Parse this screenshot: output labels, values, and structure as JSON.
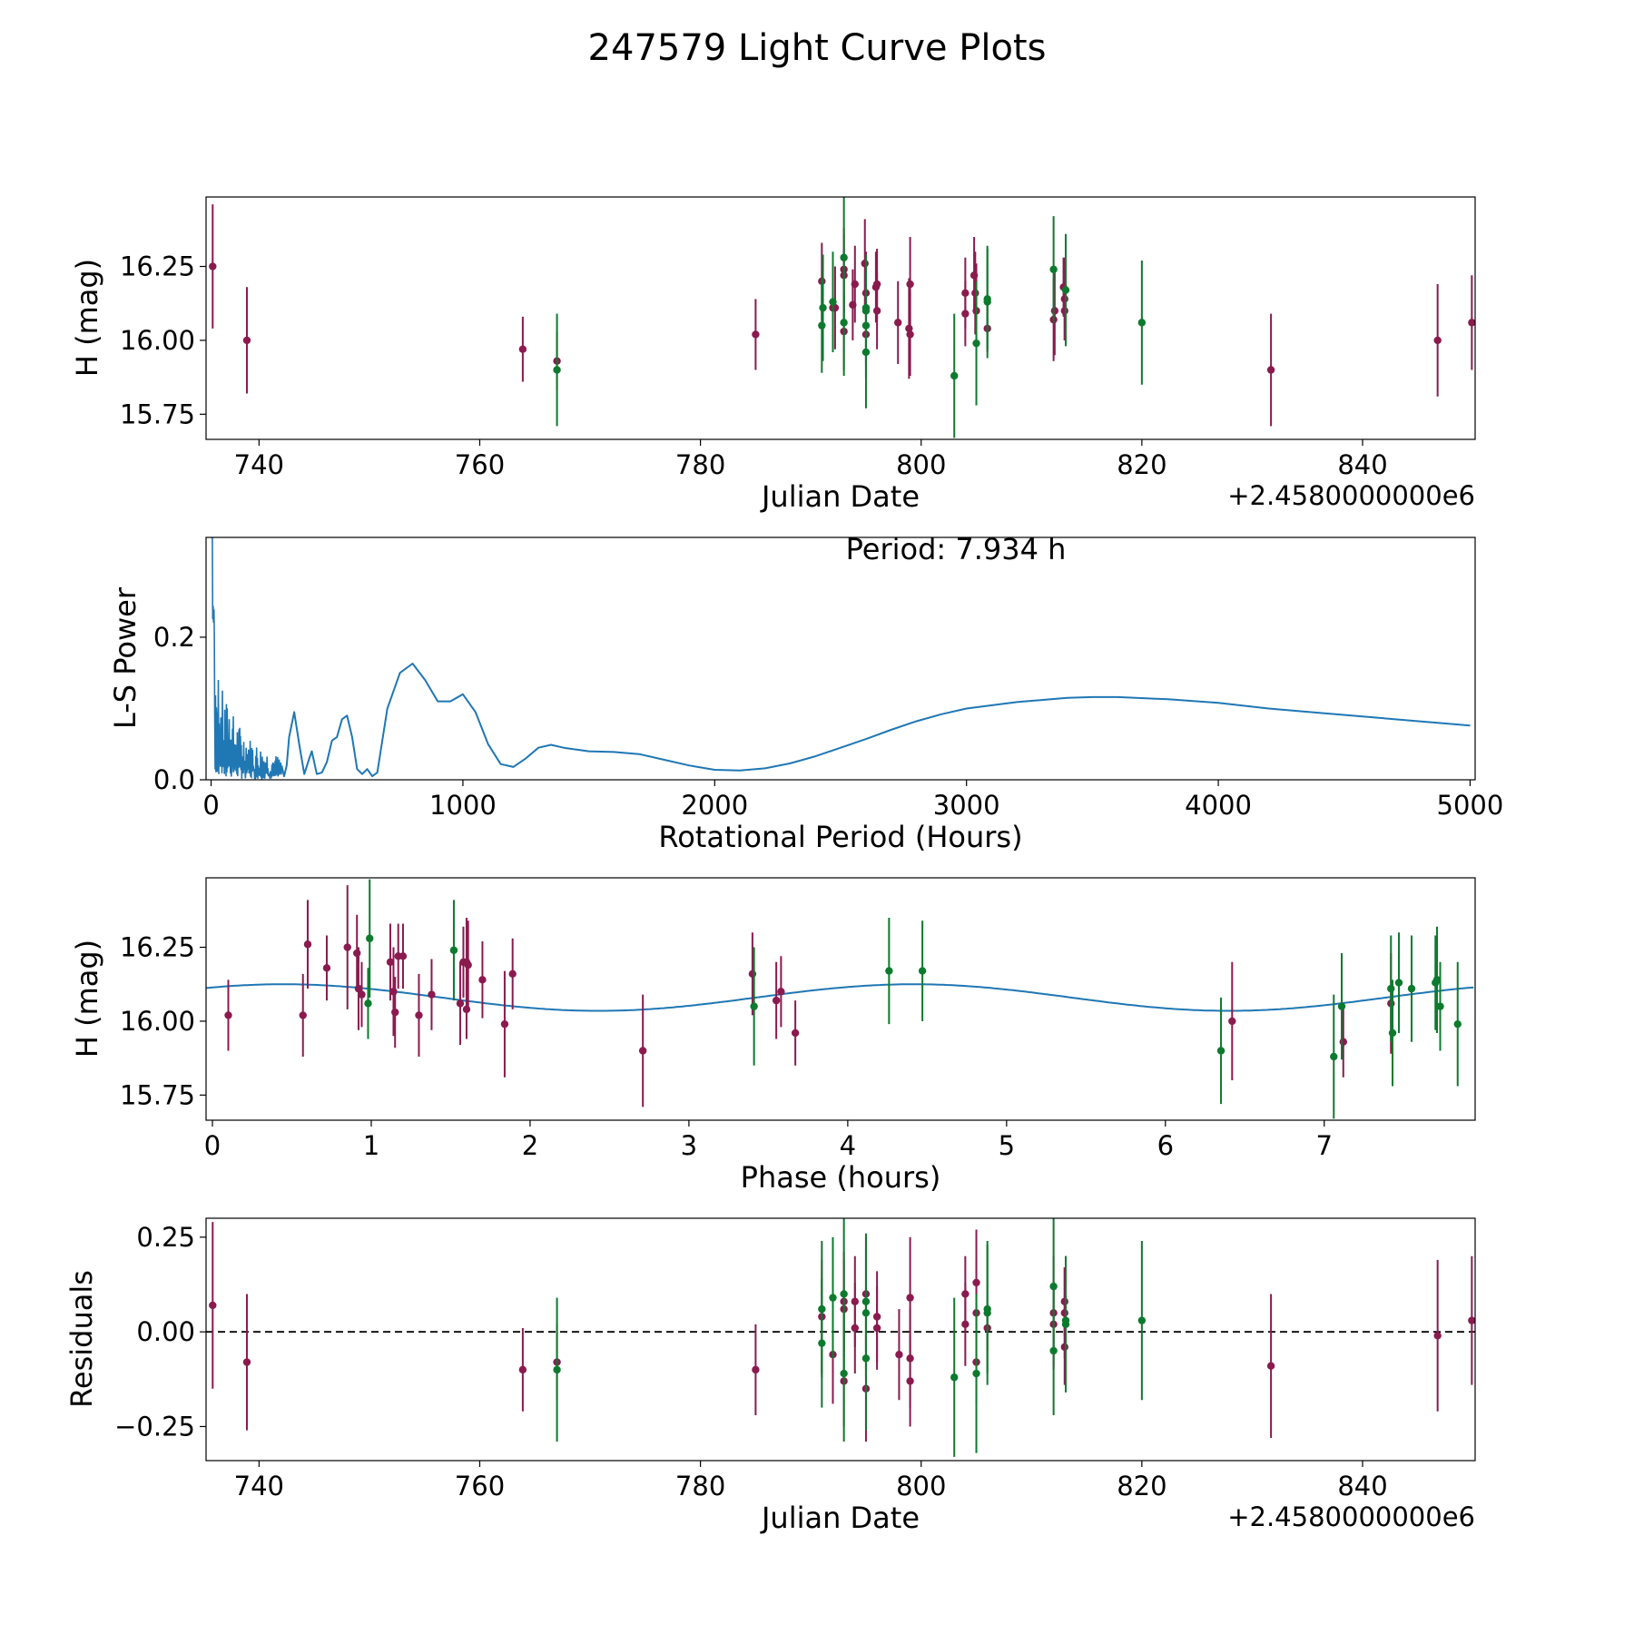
{
  "figure": {
    "title": "247579 Light Curve Plots",
    "colors": {
      "series_a": "#8b1a4f",
      "series_b": "#0d7a2e",
      "model": "#1f77b4",
      "zero_line": "#000000"
    }
  },
  "chart_data": [
    {
      "id": "lightcurve",
      "type": "scatter",
      "title": "",
      "xlabel": "Julian Date",
      "ylabel": "H (mag)",
      "offset_label": "+2.4580000000e6",
      "xlim": [
        735.2,
        850.2
      ],
      "ylim": [
        15.665,
        16.485
      ],
      "xticks": [
        740,
        760,
        780,
        800,
        820,
        840
      ],
      "xtick_labels": [
        "740",
        "760",
        "780",
        "800",
        "820",
        "840"
      ],
      "yticks": [
        15.75,
        16.0,
        16.25
      ],
      "ytick_labels": [
        "15.75",
        "16.00",
        "16.25"
      ],
      "series": [
        {
          "name": "maroon",
          "color": "#8b1a4f",
          "x": [
            735.8,
            738.9,
            763.9,
            767.0,
            785.0,
            791.0,
            792.0,
            792.2,
            793.0,
            793.0,
            793.0,
            793.8,
            794.0,
            794.9,
            795.0,
            795.0,
            795.9,
            796.0,
            796.0,
            797.9,
            798.9,
            799.0,
            799.0,
            804.0,
            804.0,
            804.8,
            804.9,
            805.0,
            806.0,
            812.0,
            812.1,
            812.9,
            813.0,
            813.0,
            831.7,
            846.8,
            849.9
          ],
          "y": [
            16.25,
            16.0,
            15.97,
            15.93,
            16.02,
            16.2,
            16.11,
            16.11,
            16.24,
            16.22,
            16.03,
            16.12,
            16.19,
            16.26,
            16.16,
            16.02,
            16.18,
            16.19,
            16.1,
            16.06,
            16.04,
            16.02,
            16.19,
            16.16,
            16.09,
            16.22,
            16.16,
            16.1,
            16.04,
            16.07,
            16.1,
            16.18,
            16.14,
            16.1,
            15.9,
            16.0,
            16.06
          ],
          "err": [
            0.21,
            0.18,
            0.11,
            0.1,
            0.12,
            0.13,
            0.14,
            0.14,
            0.14,
            0.14,
            0.13,
            0.12,
            0.13,
            0.15,
            0.14,
            0.14,
            0.12,
            0.12,
            0.13,
            0.14,
            0.17,
            0.14,
            0.16,
            0.12,
            0.11,
            0.13,
            0.14,
            0.16,
            0.08,
            0.14,
            0.15,
            0.1,
            0.14,
            0.1,
            0.19,
            0.19,
            0.16
          ]
        },
        {
          "name": "green",
          "color": "#0d7a2e",
          "x": [
            767.0,
            791.0,
            791.1,
            792.0,
            793.0,
            793.0,
            795.0,
            795.0,
            795.0,
            795.0,
            803.0,
            805.0,
            806.0,
            806.0,
            812.0,
            813.1,
            820.0
          ],
          "y": [
            15.9,
            16.05,
            16.11,
            16.13,
            16.28,
            16.06,
            16.11,
            16.05,
            15.96,
            16.1,
            15.88,
            15.99,
            16.13,
            16.14,
            16.24,
            16.17,
            16.06
          ],
          "err": [
            0.19,
            0.16,
            0.18,
            0.17,
            0.22,
            0.18,
            0.18,
            0.18,
            0.19,
            0.18,
            0.21,
            0.21,
            0.19,
            0.17,
            0.18,
            0.19,
            0.21
          ]
        }
      ]
    },
    {
      "id": "periodogram",
      "type": "line",
      "title": "",
      "xlabel": "Rotational Period (Hours)",
      "ylabel": "L-S Power",
      "annotation": "Period: 7.934 h",
      "xlim": [
        -20,
        5020
      ],
      "ylim": [
        0.0,
        0.34
      ],
      "xticks": [
        0,
        1000,
        2000,
        3000,
        4000,
        5000
      ],
      "xtick_labels": [
        "0",
        "1000",
        "2000",
        "3000",
        "4000",
        "5000"
      ],
      "yticks": [
        0.0,
        0.2
      ],
      "ytick_labels": [
        "0.0",
        "0.2"
      ],
      "series": [
        {
          "name": "L-S Power",
          "color": "#1f77b4",
          "x": [
            280,
            290,
            300,
            310,
            330,
            350,
            370,
            390,
            400,
            420,
            440,
            460,
            480,
            500,
            520,
            540,
            560,
            580,
            600,
            620,
            640,
            660,
            700,
            750,
            800,
            850,
            900,
            950,
            1000,
            1050,
            1100,
            1150,
            1200,
            1250,
            1300,
            1350,
            1400,
            1500,
            1600,
            1700,
            1800,
            1900,
            2000,
            2100,
            2200,
            2300,
            2400,
            2500,
            2600,
            2700,
            2800,
            2900,
            3000,
            3200,
            3400,
            3500,
            3600,
            3800,
            4000,
            4200,
            4400,
            4600,
            4800,
            5000
          ],
          "y": [
            0.02,
            0.005,
            0.02,
            0.06,
            0.095,
            0.05,
            0.008,
            0.03,
            0.04,
            0.008,
            0.01,
            0.025,
            0.055,
            0.06,
            0.085,
            0.09,
            0.06,
            0.015,
            0.008,
            0.015,
            0.005,
            0.01,
            0.1,
            0.15,
            0.163,
            0.14,
            0.11,
            0.11,
            0.12,
            0.095,
            0.05,
            0.022,
            0.018,
            0.03,
            0.045,
            0.049,
            0.045,
            0.04,
            0.039,
            0.036,
            0.028,
            0.02,
            0.014,
            0.013,
            0.016,
            0.023,
            0.033,
            0.045,
            0.057,
            0.07,
            0.082,
            0.092,
            0.1,
            0.109,
            0.115,
            0.116,
            0.116,
            0.113,
            0.108,
            0.1,
            0.094,
            0.088,
            0.082,
            0.076
          ]
        }
      ]
    },
    {
      "id": "phased",
      "type": "scatter",
      "title": "",
      "xlabel": "Phase (hours)",
      "ylabel": "H (mag)",
      "xlim": [
        -0.04,
        7.95
      ],
      "ylim": [
        15.665,
        16.485
      ],
      "xticks": [
        0,
        1,
        2,
        3,
        4,
        5,
        6,
        7
      ],
      "xtick_labels": [
        "0",
        "1",
        "2",
        "3",
        "4",
        "5",
        "6",
        "7"
      ],
      "yticks": [
        15.75,
        16.0,
        16.25
      ],
      "ytick_labels": [
        "15.75",
        "16.00",
        "16.25"
      ],
      "model": {
        "name": "fit",
        "mean": 16.08,
        "amp1": 0.045,
        "amp2": 0.02,
        "phase2": 0.3
      },
      "series": [
        {
          "name": "maroon",
          "color": "#8b1a4f",
          "x": [
            0.1,
            0.57,
            0.6,
            0.72,
            0.85,
            0.91,
            0.92,
            0.94,
            1.12,
            1.14,
            1.15,
            1.17,
            1.2,
            1.3,
            1.38,
            1.56,
            1.58,
            1.6,
            1.6,
            1.61,
            1.7,
            1.84,
            1.89,
            2.71,
            3.4,
            3.55,
            3.58,
            3.67,
            6.42,
            7.12,
            7.42
          ],
          "y": [
            16.02,
            16.02,
            16.26,
            16.18,
            16.25,
            16.23,
            16.11,
            16.09,
            16.2,
            16.1,
            16.03,
            16.22,
            16.22,
            16.02,
            16.09,
            16.06,
            16.2,
            16.2,
            16.04,
            16.19,
            16.14,
            15.99,
            16.16,
            15.9,
            16.16,
            16.07,
            16.1,
            15.96,
            16.0,
            15.93,
            16.06
          ],
          "err": [
            0.12,
            0.14,
            0.15,
            0.11,
            0.21,
            0.13,
            0.14,
            0.11,
            0.13,
            0.15,
            0.12,
            0.11,
            0.11,
            0.14,
            0.12,
            0.14,
            0.12,
            0.15,
            0.1,
            0.15,
            0.13,
            0.18,
            0.12,
            0.19,
            0.14,
            0.13,
            0.12,
            0.11,
            0.2,
            0.12,
            0.17
          ]
        },
        {
          "name": "green",
          "color": "#0d7a2e",
          "x": [
            0.98,
            0.99,
            1.52,
            3.41,
            4.26,
            4.47,
            6.35,
            7.06,
            7.11,
            7.42,
            7.43,
            7.47,
            7.55,
            7.7,
            7.71,
            7.73,
            7.84
          ],
          "y": [
            16.06,
            16.28,
            16.24,
            16.05,
            16.17,
            16.17,
            15.9,
            15.88,
            16.05,
            16.11,
            15.96,
            16.13,
            16.11,
            16.13,
            16.14,
            16.05,
            15.99
          ],
          "err": [
            0.12,
            0.2,
            0.17,
            0.2,
            0.18,
            0.17,
            0.18,
            0.21,
            0.18,
            0.18,
            0.18,
            0.17,
            0.18,
            0.16,
            0.18,
            0.15,
            0.21
          ]
        }
      ]
    },
    {
      "id": "residuals",
      "type": "scatter",
      "title": "",
      "xlabel": "Julian Date",
      "ylabel": "Residuals",
      "offset_label": "+2.4580000000e6",
      "xlim": [
        735.2,
        850.2
      ],
      "ylim": [
        -0.34,
        0.3
      ],
      "xticks": [
        740,
        760,
        780,
        800,
        820,
        840
      ],
      "xtick_labels": [
        "740",
        "760",
        "780",
        "800",
        "820",
        "840"
      ],
      "yticks": [
        -0.25,
        0.0,
        0.25
      ],
      "ytick_labels": [
        "−0.25",
        "0.00",
        "0.25"
      ],
      "zero_line": 0.0,
      "series": [
        {
          "name": "maroon",
          "color": "#8b1a4f",
          "x": [
            735.8,
            738.9,
            763.9,
            767.0,
            785.0,
            791.0,
            792.0,
            793.0,
            793.0,
            793.0,
            794.0,
            794.0,
            795.0,
            795.0,
            796.0,
            796.0,
            798.0,
            799.0,
            799.0,
            799.0,
            804.0,
            804.0,
            805.0,
            805.0,
            805.0,
            806.0,
            812.0,
            812.0,
            813.0,
            813.0,
            813.0,
            831.7,
            846.8,
            849.9
          ],
          "y": [
            0.07,
            -0.08,
            -0.1,
            -0.08,
            -0.1,
            0.04,
            -0.06,
            0.08,
            0.06,
            -0.13,
            0.08,
            0.01,
            -0.15,
            0.1,
            0.04,
            0.01,
            -0.06,
            0.09,
            -0.07,
            -0.13,
            0.1,
            0.02,
            0.13,
            -0.08,
            0.05,
            0.01,
            0.05,
            0.02,
            0.08,
            0.05,
            -0.04,
            -0.09,
            -0.01,
            0.03
          ],
          "err": [
            0.22,
            0.18,
            0.11,
            0.1,
            0.12,
            0.15,
            0.13,
            0.13,
            0.13,
            0.12,
            0.12,
            0.12,
            0.14,
            0.15,
            0.12,
            0.11,
            0.12,
            0.16,
            0.13,
            0.12,
            0.1,
            0.11,
            0.14,
            0.11,
            0.14,
            0.06,
            0.15,
            0.11,
            0.09,
            0.12,
            0.1,
            0.19,
            0.2,
            0.17
          ]
        },
        {
          "name": "green",
          "color": "#0d7a2e",
          "x": [
            767.0,
            791.0,
            791.0,
            792.0,
            793.0,
            793.0,
            795.0,
            795.0,
            795.0,
            803.0,
            805.0,
            806.0,
            806.0,
            812.0,
            812.0,
            813.1,
            813.1,
            820.0
          ],
          "y": [
            -0.1,
            0.06,
            -0.03,
            0.09,
            0.1,
            -0.11,
            0.08,
            0.05,
            -0.07,
            -0.12,
            -0.11,
            0.05,
            0.06,
            0.12,
            -0.05,
            0.02,
            0.03,
            0.03
          ],
          "err": [
            0.19,
            0.18,
            0.17,
            0.16,
            0.21,
            0.18,
            0.18,
            0.17,
            0.19,
            0.21,
            0.21,
            0.19,
            0.17,
            0.18,
            0.17,
            0.18,
            0.17,
            0.21
          ]
        }
      ]
    }
  ]
}
